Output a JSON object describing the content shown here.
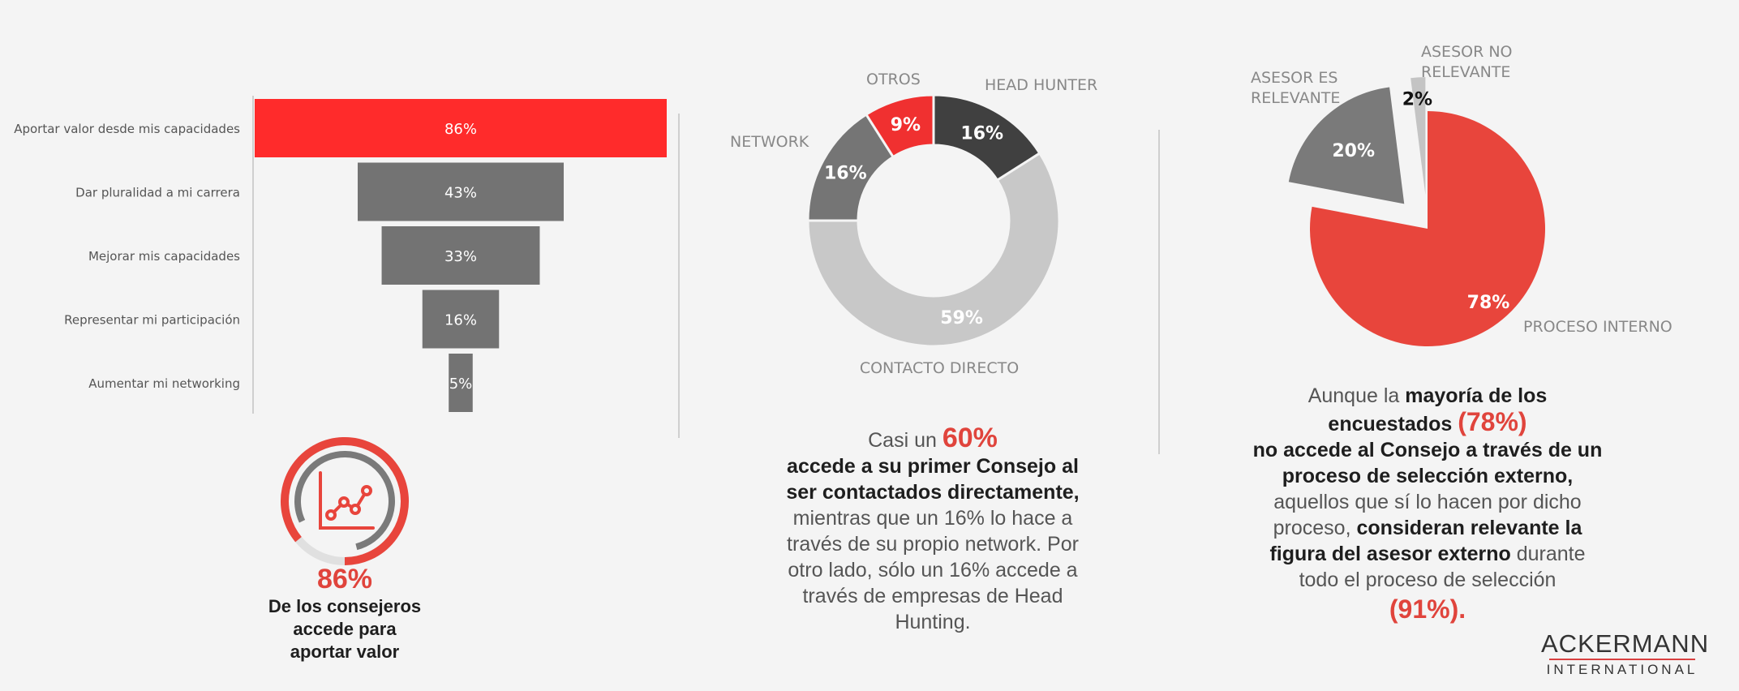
{
  "chart_data": [
    {
      "type": "bar",
      "subtype": "funnel",
      "categories": [
        "Aportar valor desde mis capacidades",
        "Dar pluralidad a mi carrera",
        "Mejorar mis capacidades",
        "Representar mi participación",
        "Aumentar mi networking"
      ],
      "values": [
        86,
        43,
        33,
        16,
        5
      ],
      "value_labels": [
        "86%",
        "43%",
        "33%",
        "16%",
        "5%"
      ],
      "highlight_color": "#ff2b2b",
      "bar_color": "#737373"
    },
    {
      "type": "pie",
      "subtype": "donut",
      "slices": [
        {
          "label": "HEAD HUNTER",
          "value": 16,
          "value_label": "16%",
          "color": "#404040"
        },
        {
          "label": "CONTACTO DIRECTO",
          "value": 59,
          "value_label": "59%",
          "color": "#c8c8c8"
        },
        {
          "label": "NETWORK",
          "value": 16,
          "value_label": "16%",
          "color": "#757575"
        },
        {
          "label": "OTROS",
          "value": 9,
          "value_label": "9%",
          "color": "#f03030"
        }
      ]
    },
    {
      "type": "pie",
      "subtype": "exploded",
      "slices": [
        {
          "label": "PROCESO INTERNO",
          "value": 78,
          "value_label": "78%",
          "color": "#e8453c"
        },
        {
          "label": "ASESOR ES RELEVANTE",
          "value": 20,
          "value_label": "20%",
          "color": "#7a7a7a"
        },
        {
          "label": "ASESOR NO RELEVANTE",
          "value": 2,
          "value_label": "2%",
          "color": "#c4c4c4"
        }
      ]
    }
  ],
  "gauge": {
    "value": 86,
    "value_label": "86%",
    "text_lines": [
      "De los consejeros",
      "accede para",
      "aportar valor"
    ]
  },
  "middle_caption": {
    "lead": "Casi un ",
    "highlight": "60%",
    "bold_lines": [
      "accede a su primer Consejo al",
      "ser contactados directamente,"
    ],
    "normal_lines": [
      "mientras que un 16% lo hace a",
      "través de su propio network. Por",
      "otro lado, sólo un 16% accede a",
      "través de empresas de Head",
      "Hunting."
    ]
  },
  "right_caption": {
    "l1_normal": "Aunque la ",
    "l1_bold": "mayoría de los",
    "l2_bold": "encuestados ",
    "l2_red": "(78%)",
    "l3_bold": "no accede al Consejo a través de un",
    "l4_bold": "proceso de selección externo,",
    "l5_normal": "aquellos que sí lo hacen por dicho",
    "l6_normal": "proceso, ",
    "l6_bold": "consideran relevante la",
    "l7_bold": "figura del asesor externo",
    "l7_normal": " durante",
    "l8_normal": "todo el proceso de selección",
    "l9_red": "(91%)."
  },
  "brand": {
    "line1": "ACKERMANN",
    "line2": "INTERNATIONAL"
  }
}
